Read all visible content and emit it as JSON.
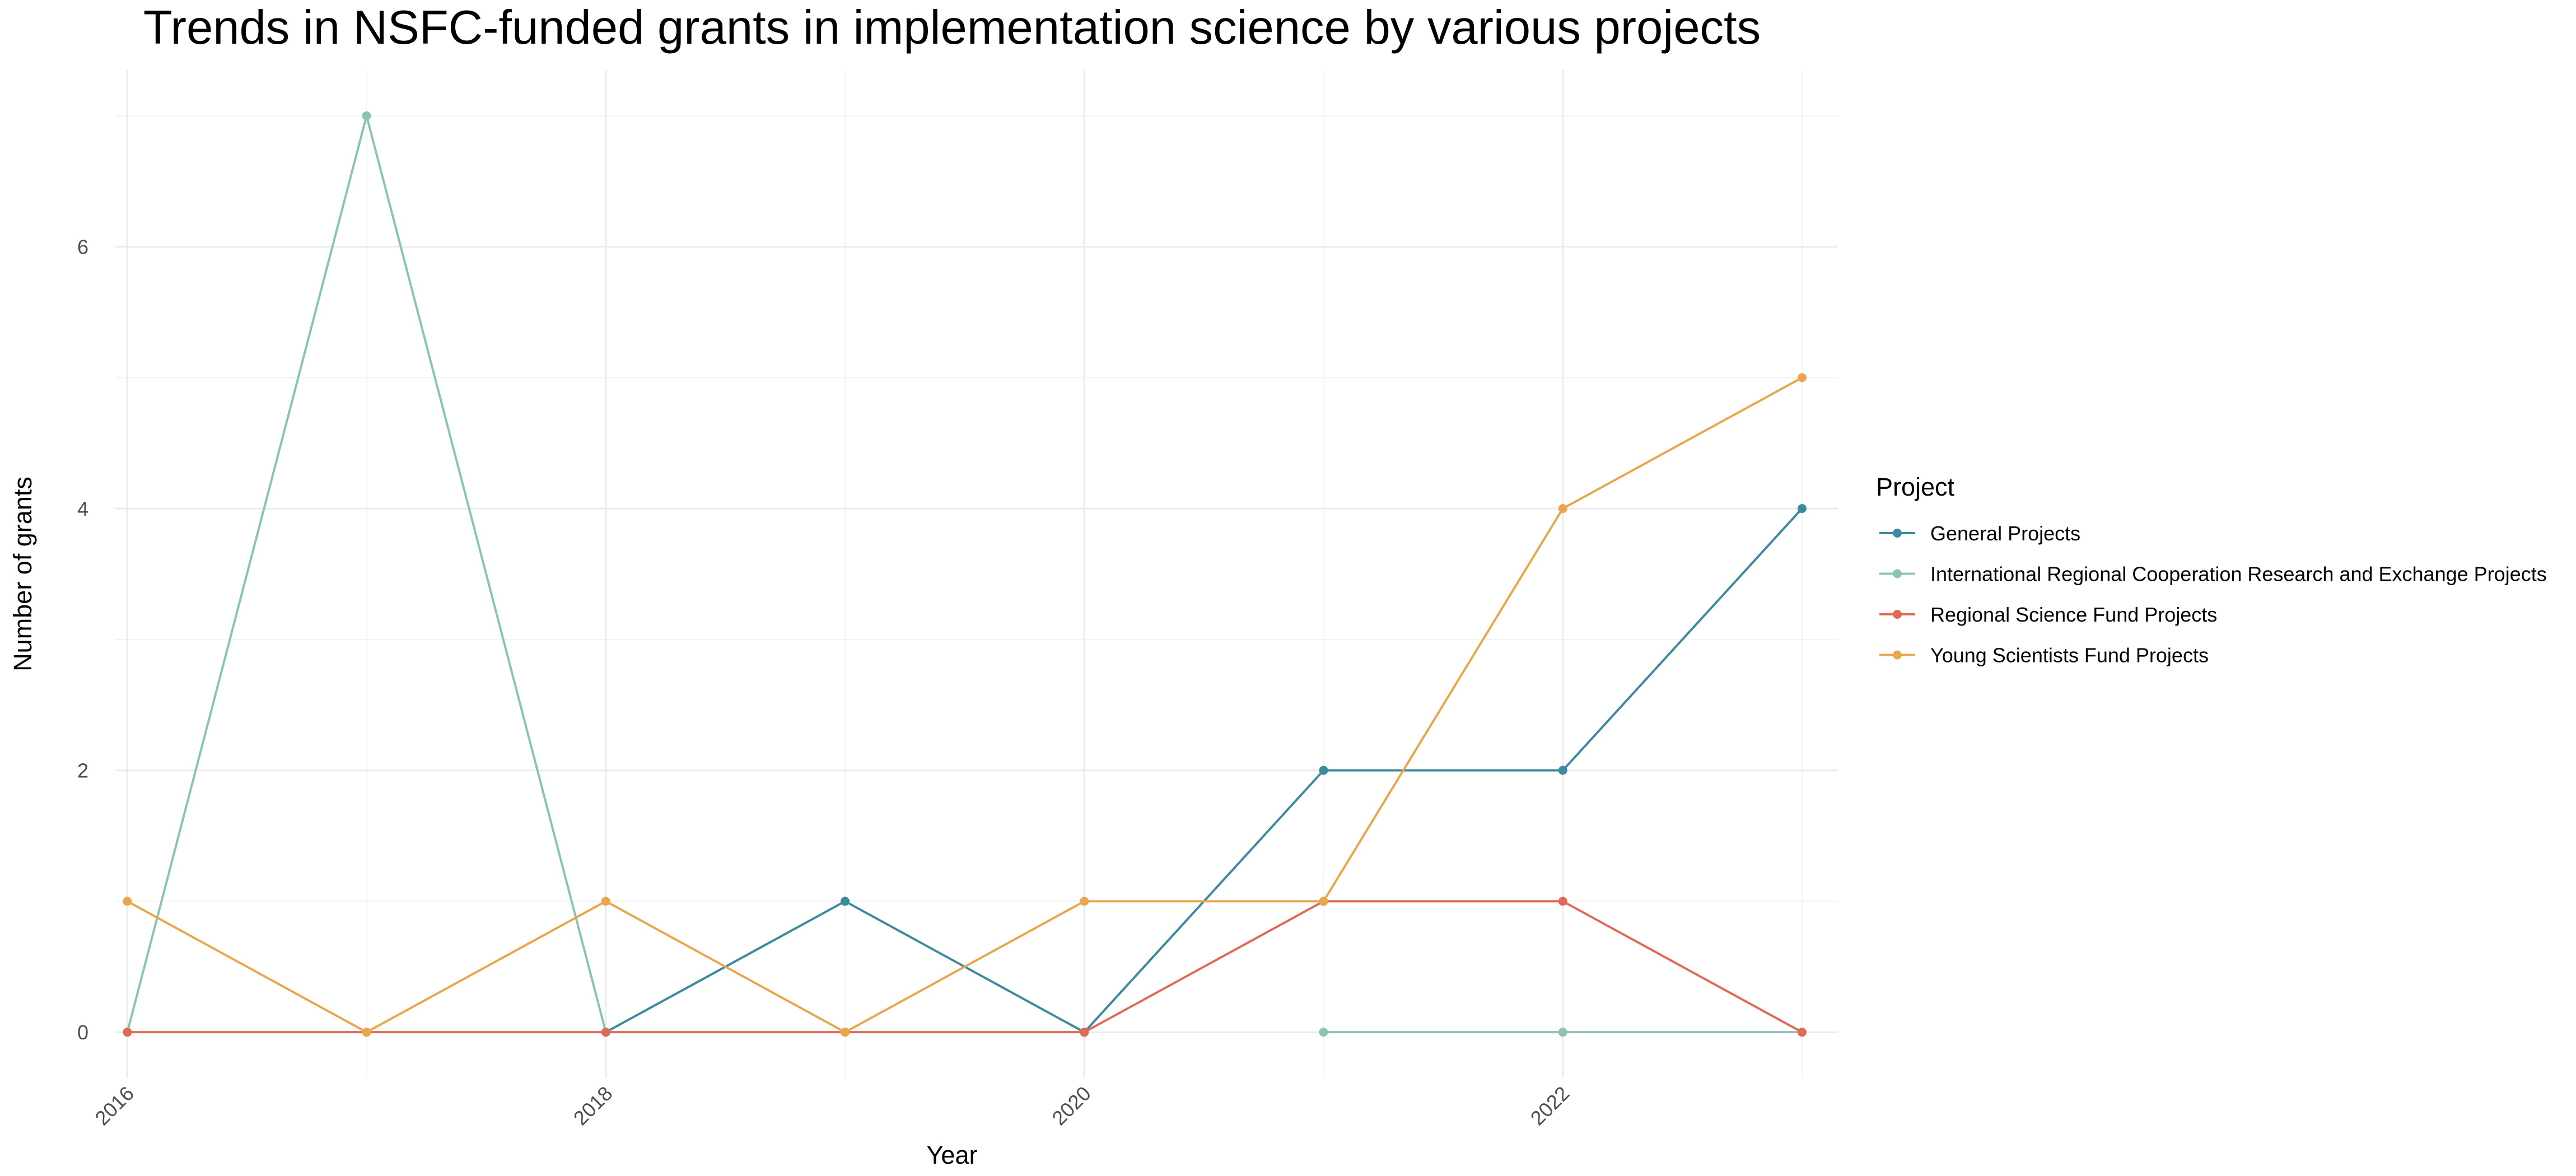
{
  "chart_data": {
    "type": "line",
    "title": "Trends in NSFC-funded grants in implementation science by various projects",
    "xlabel": "Year",
    "ylabel": "Number of grants",
    "x": [
      2016,
      2017,
      2018,
      2019,
      2020,
      2021,
      2022,
      2023
    ],
    "x_ticks": [
      2016,
      2018,
      2020,
      2022
    ],
    "y_ticks": [
      0,
      2,
      4,
      6
    ],
    "xlim": [
      2015.95,
      2023.15
    ],
    "ylim": [
      -0.35,
      7.35
    ],
    "grid": true,
    "legend_title": "Project",
    "legend_position": "right",
    "series": [
      {
        "name": "General Projects",
        "color": "#3c8b9c",
        "values": [
          null,
          null,
          0,
          1,
          0,
          2,
          2,
          4
        ]
      },
      {
        "name": "International Regional Cooperation Research and Exchange Projects",
        "color": "#8cc3b4",
        "values": [
          0,
          7,
          0,
          null,
          null,
          0,
          0,
          0
        ]
      },
      {
        "name": "Regional Science Fund Projects",
        "color": "#dd6b55",
        "values": [
          0,
          0,
          0,
          0,
          0,
          1,
          1,
          0
        ]
      },
      {
        "name": "Young Scientists Fund Projects",
        "color": "#e8a64e",
        "values": [
          1,
          0,
          1,
          0,
          1,
          1,
          4,
          5
        ]
      }
    ]
  }
}
